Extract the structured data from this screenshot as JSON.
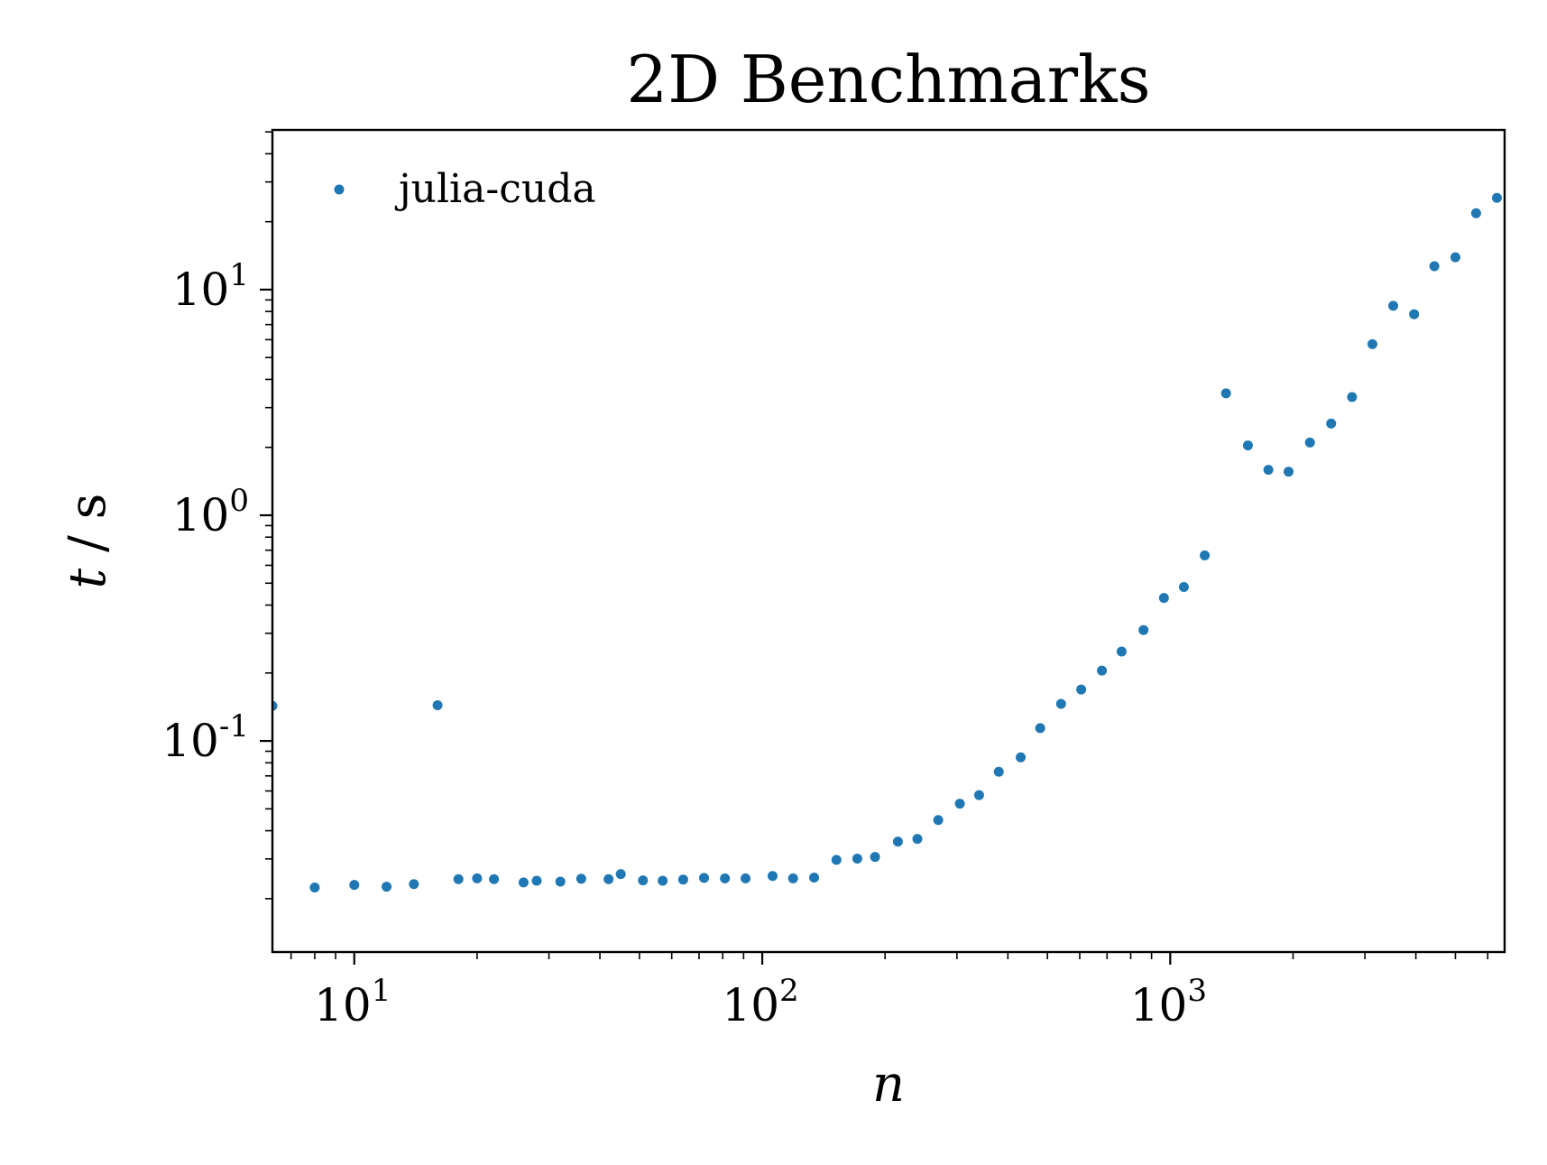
{
  "chart_data": {
    "type": "scatter",
    "title": "2D Benchmarks",
    "xlabel_var": "n",
    "ylabel_var": "t",
    "ylabel_sep": "/",
    "ylabel_unit": "s",
    "xscale": "log",
    "yscale": "log",
    "xlim": [
      6.3,
      6600
    ],
    "ylim": [
      0.0116,
      51
    ],
    "grid": false,
    "legend_position": "top-left",
    "x_ticks": [
      {
        "base": "10",
        "exp": "1",
        "value": 10
      },
      {
        "base": "10",
        "exp": "2",
        "value": 100
      },
      {
        "base": "10",
        "exp": "3",
        "value": 1000
      }
    ],
    "y_ticks": [
      {
        "base": "10",
        "exp": "-1",
        "value": 0.1
      },
      {
        "base": "10",
        "exp": "0",
        "value": 1
      },
      {
        "base": "10",
        "exp": "1",
        "value": 10
      }
    ],
    "series": [
      {
        "name": "julia-cuda",
        "color": "#1f77b4",
        "x": [
          6.3,
          8,
          10,
          12,
          14,
          16,
          18,
          20,
          22,
          26,
          28,
          32,
          36,
          42,
          45,
          51,
          57,
          64,
          72,
          81,
          91,
          106,
          119,
          134,
          152,
          171,
          189,
          215,
          240,
          270,
          305,
          340,
          380,
          430,
          480,
          540,
          605,
          680,
          760,
          860,
          965,
          1080,
          1215,
          1370,
          1550,
          1740,
          1950,
          2200,
          2480,
          2790,
          3130,
          3520,
          3960,
          4440,
          5000,
          5620,
          6320
        ],
        "y": [
          0.143,
          0.0224,
          0.023,
          0.0226,
          0.0232,
          0.144,
          0.0244,
          0.0246,
          0.0244,
          0.0236,
          0.024,
          0.0238,
          0.0245,
          0.0244,
          0.0257,
          0.0241,
          0.024,
          0.0243,
          0.0247,
          0.0246,
          0.0246,
          0.0252,
          0.0246,
          0.0248,
          0.0297,
          0.0301,
          0.0306,
          0.0358,
          0.0368,
          0.0446,
          0.0527,
          0.0575,
          0.073,
          0.0846,
          0.114,
          0.146,
          0.169,
          0.205,
          0.249,
          0.31,
          0.43,
          0.481,
          0.664,
          3.47,
          2.04,
          1.59,
          1.56,
          2.1,
          2.55,
          3.34,
          5.73,
          8.48,
          7.78,
          12.7,
          13.9,
          21.8,
          25.5
        ]
      }
    ]
  }
}
